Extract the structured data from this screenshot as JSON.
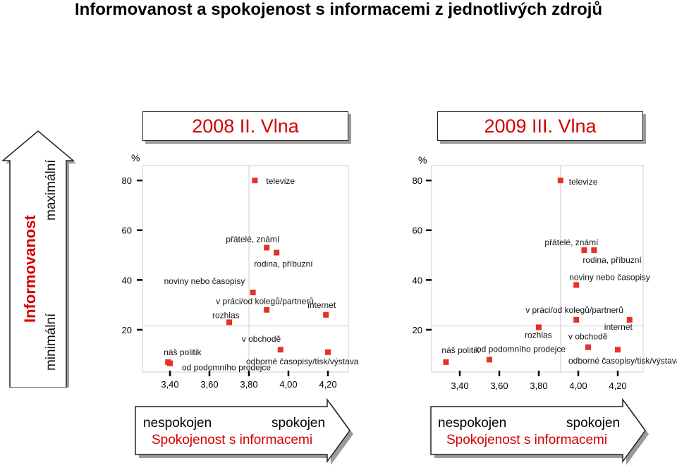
{
  "title": "Informovanost a spokojenost s informacemi z jednotlivých zdrojů",
  "y_arrow": {
    "label": "Informovanost",
    "top_label": "maximální",
    "bottom_label": "minimální"
  },
  "bottom_arrows": [
    {
      "left_label": "nespokojen",
      "right_label": "spokojen",
      "caption": "Spokojenost s informacemi"
    },
    {
      "left_label": "nespokojen",
      "right_label": "spokojen",
      "caption": "Spokojenost s informacemi"
    }
  ],
  "colors": {
    "marker": "#e8302a",
    "accent": "#d40000",
    "axis": "#000000",
    "grid": "#cfcfcf"
  },
  "chart_data": [
    {
      "type": "scatter",
      "title": "2008 II. Vlna",
      "ylabel": "%",
      "xlabel": "",
      "xlim": [
        3.3,
        4.3
      ],
      "ylim": [
        3,
        84
      ],
      "x_ticks": [
        "3,40",
        "3,60",
        "3,80",
        "4,00",
        "4,20"
      ],
      "y_ticks": [
        "20",
        "40",
        "60",
        "80"
      ],
      "points": [
        {
          "label": "televize",
          "x": 3.83,
          "y": 80
        },
        {
          "label": "přátelé, známí",
          "x": 3.89,
          "y": 53
        },
        {
          "label": "rodina, příbuzní",
          "x": 3.94,
          "y": 51
        },
        {
          "label": "noviny nebo časopisy",
          "x": 3.82,
          "y": 35
        },
        {
          "label": "v práci/od kolegů/partnerů",
          "x": 3.89,
          "y": 28
        },
        {
          "label": "internet",
          "x": 4.19,
          "y": 26
        },
        {
          "label": "rozhlas",
          "x": 3.7,
          "y": 23
        },
        {
          "label": "v obchodě",
          "x": 3.96,
          "y": 12
        },
        {
          "label": "odborné časopisy/tisk/výstava",
          "x": 4.2,
          "y": 11
        },
        {
          "label": "náš politik",
          "x": 3.39,
          "y": 7
        },
        {
          "label": "od podomního prodejce",
          "x": 3.4,
          "y": 6.5
        }
      ]
    },
    {
      "type": "scatter",
      "title": "2009 III. Vlna",
      "ylabel": "%",
      "xlabel": "",
      "xlim": [
        3.3,
        4.3
      ],
      "ylim": [
        3,
        84
      ],
      "x_ticks": [
        "3,40",
        "3,60",
        "3,80",
        "4,00",
        "4,20"
      ],
      "y_ticks": [
        "20",
        "40",
        "60",
        "80"
      ],
      "points": [
        {
          "label": "televize",
          "x": 3.91,
          "y": 80
        },
        {
          "label": "přátelé, známí",
          "x": 4.03,
          "y": 52
        },
        {
          "label": "rodina, příbuzní",
          "x": 4.08,
          "y": 52
        },
        {
          "label": "noviny nebo časopisy",
          "x": 3.99,
          "y": 38
        },
        {
          "label": "v práci/od kolegů/partnerů",
          "x": 3.99,
          "y": 24
        },
        {
          "label": "internet",
          "x": 4.26,
          "y": 24
        },
        {
          "label": "rozhlas",
          "x": 3.8,
          "y": 21
        },
        {
          "label": "v obchodě",
          "x": 4.05,
          "y": 13
        },
        {
          "label": "odborné časopisy/tisk/výstava",
          "x": 4.2,
          "y": 12
        },
        {
          "label": "náš politik",
          "x": 3.33,
          "y": 7
        },
        {
          "label": "od podomního prodejce",
          "x": 3.55,
          "y": 8
        }
      ]
    }
  ]
}
